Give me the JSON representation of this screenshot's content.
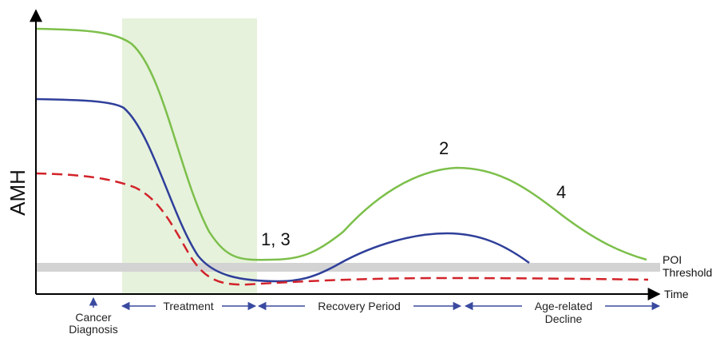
{
  "axes": {
    "y_label": "AMH",
    "x_label": "Time"
  },
  "threshold": {
    "label_line1": "POI",
    "label_line2": "Threshold",
    "color": "#d3d3d3"
  },
  "treatment_region": {
    "color": "#e6f2dc"
  },
  "curves": [
    {
      "id": "high",
      "color": "#7cbf4a",
      "style": "solid"
    },
    {
      "id": "mid",
      "color": "#2f3f9a",
      "style": "solid"
    },
    {
      "id": "low",
      "color": "#d2232a",
      "style": "dashed"
    }
  ],
  "annotations": {
    "point_a": "1, 3",
    "point_b": "2",
    "point_c": "4"
  },
  "diagnosis": {
    "line1": "Cancer",
    "line2": "Diagnosis"
  },
  "phases": {
    "treatment": "Treatment",
    "recovery": "Recovery Period",
    "decline_line1": "Age-related",
    "decline_line2": "Decline"
  },
  "arrow_color": "#3a4aa0"
}
